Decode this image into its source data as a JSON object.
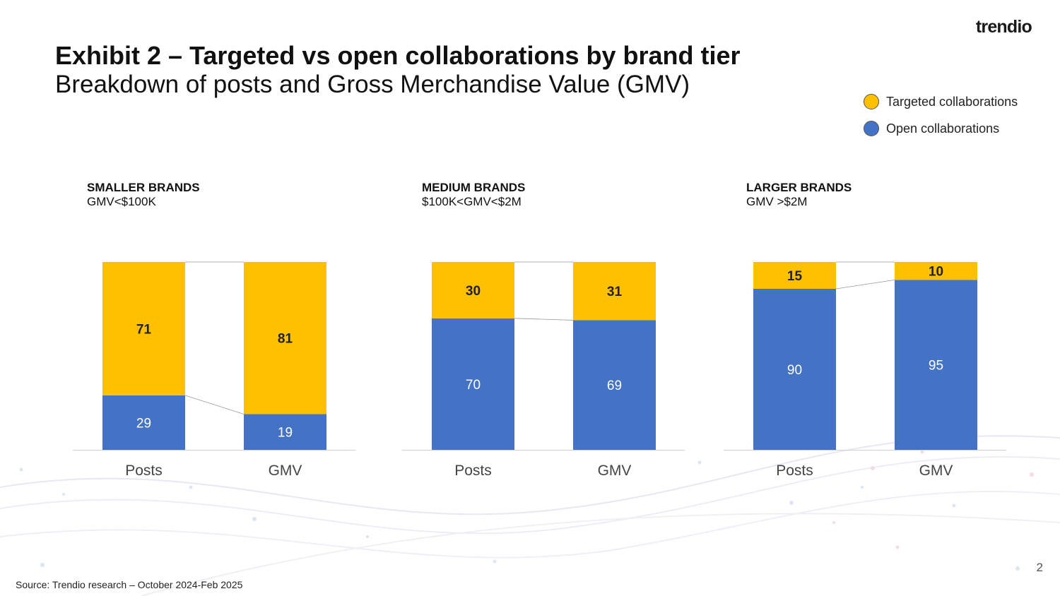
{
  "logo": "trendio",
  "title": "Exhibit 2 – Targeted vs open collaborations by brand tier",
  "subtitle": "Breakdown of posts and Gross Merchandise Value (GMV)",
  "legend": [
    {
      "label": "Targeted collaborations",
      "color": "#FFC000"
    },
    {
      "label": "Open collaborations",
      "color": "#4472C4"
    }
  ],
  "chart_data": [
    {
      "type": "bar",
      "stacked": true,
      "title": "SMALLER BRANDS",
      "subtitle": "GMV<$100K",
      "categories": [
        "Posts",
        "GMV"
      ],
      "series": [
        {
          "name": "Open collaborations",
          "color": "#4472C4",
          "values": [
            29,
            19
          ]
        },
        {
          "name": "Targeted collaborations",
          "color": "#FFC000",
          "values": [
            71,
            81
          ]
        }
      ],
      "ylim": [
        0,
        100
      ],
      "grid": false
    },
    {
      "type": "bar",
      "stacked": true,
      "title": "MEDIUM BRANDS",
      "subtitle": "$100K<GMV<$2M",
      "categories": [
        "Posts",
        "GMV"
      ],
      "series": [
        {
          "name": "Open collaborations",
          "color": "#4472C4",
          "values": [
            70,
            69
          ]
        },
        {
          "name": "Targeted collaborations",
          "color": "#FFC000",
          "values": [
            30,
            31
          ]
        }
      ],
      "ylim": [
        0,
        100
      ],
      "grid": false
    },
    {
      "type": "bar",
      "stacked": true,
      "title": "LARGER BRANDS",
      "subtitle": "GMV >$2M",
      "categories": [
        "Posts",
        "GMV"
      ],
      "series": [
        {
          "name": "Open collaborations",
          "color": "#4472C4",
          "values": [
            90,
            95
          ]
        },
        {
          "name": "Targeted collaborations",
          "color": "#FFC000",
          "values": [
            15,
            10
          ]
        }
      ],
      "ylim": [
        0,
        105
      ],
      "grid": false
    }
  ],
  "source": "Source: Trendio research – October 2024-Feb 2025",
  "page_number": "2"
}
